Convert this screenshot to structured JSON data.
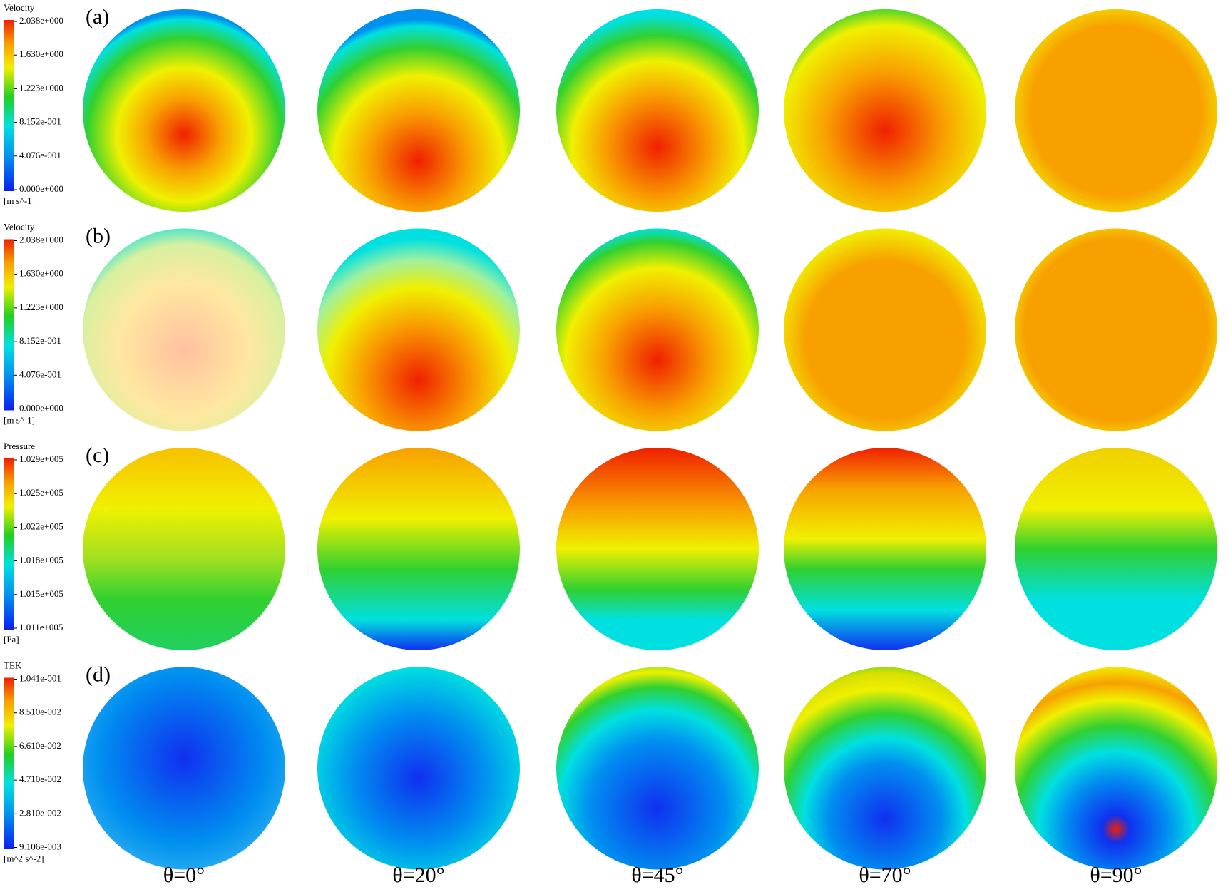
{
  "panels": [
    {
      "label": "(a)",
      "colorbar": {
        "title": "Velocity",
        "ticks": [
          "2.038e+000",
          "1.630e+000",
          "1.223e+000",
          "8.152e-001",
          "4.076e-001",
          "0.000e+000"
        ],
        "unit": "[m s^-1]"
      }
    },
    {
      "label": "(b)",
      "colorbar": {
        "title": "Velocity",
        "ticks": [
          "2.038e+000",
          "1.630e+000",
          "1.223e+000",
          "8.152e-001",
          "4.076e-001",
          "0.000e+000"
        ],
        "unit": "[m s^-1]"
      }
    },
    {
      "label": "(c)",
      "colorbar": {
        "title": "Pressure",
        "ticks": [
          "1.029e+005",
          "1.025e+005",
          "1.022e+005",
          "1.018e+005",
          "1.015e+005",
          "1.011e+005"
        ],
        "unit": "[Pa]"
      }
    },
    {
      "label": "(d)",
      "colorbar": {
        "title": "TEK",
        "ticks": [
          "1.041e-001",
          "8.510e-002",
          "6.610e-002",
          "4.710e-002",
          "2.810e-002",
          "9.106e-003"
        ],
        "unit": "[m^2 s^-2]"
      }
    }
  ],
  "columns": [
    "θ=0°",
    "θ=20°",
    "θ=45°",
    "θ=70°",
    "θ=90°"
  ]
}
